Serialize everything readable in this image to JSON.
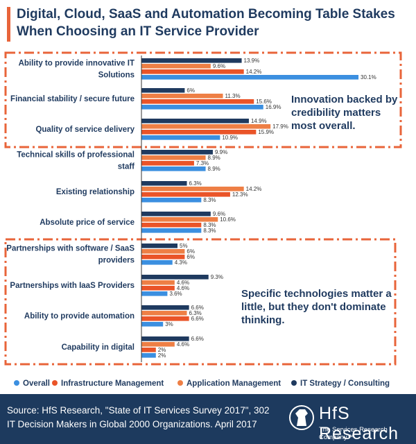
{
  "title": "Digital, Cloud, SaaS and Automation Becoming Table Stakes When Choosing an IT Service Provider",
  "callouts": {
    "innovation": [
      "Innovation backed by",
      "credibility matters",
      "most overall."
    ],
    "technologies": [
      "Specific technologies matter a",
      "little, but they don't dominate",
      "thinking."
    ]
  },
  "footer": {
    "source": "Source: HfS Research, \"State of IT Services Survey 2017\", 302 IT Decision Makers in Global 2000 Organizations. April 2017",
    "logo_name": "HfS Research",
    "logo_tag": "The Services Research Company™"
  },
  "colors": {
    "overall": "#3b8fe0",
    "infrastructure": "#ea5428",
    "application": "#ee7f45",
    "strategy": "#1f3a5f",
    "dash": "#e8643a"
  },
  "chart_data": {
    "type": "bar",
    "orientation": "horizontal",
    "value_suffix": "%",
    "categories": [
      [
        "Ability to provide innovative IT",
        "Solutions"
      ],
      [
        "Financial stability / secure future"
      ],
      [
        "Quality of service delivery"
      ],
      [
        "Technical skills of professional",
        "staff"
      ],
      [
        "Existing relationship"
      ],
      [
        "Absolute price of service"
      ],
      [
        "Partnerships with software / SaaS",
        "providers"
      ],
      [
        "Partnerships with IaaS Providers"
      ],
      [
        "Ability to provide automation"
      ],
      [
        "Capability in digital"
      ]
    ],
    "series": [
      {
        "name": "IT Strategy / Consulting",
        "color_key": "strategy",
        "values": [
          13.9,
          6,
          14.9,
          9.9,
          6.3,
          9.6,
          5,
          9.3,
          6.6,
          6.6
        ]
      },
      {
        "name": "Application Management",
        "color_key": "application",
        "values": [
          9.6,
          11.3,
          17.9,
          8.9,
          14.2,
          10.6,
          6,
          4.6,
          6.3,
          4.6
        ]
      },
      {
        "name": "Infrastructure Management",
        "color_key": "infrastructure",
        "values": [
          14.2,
          15.6,
          15.9,
          7.3,
          12.3,
          8.3,
          6,
          4.6,
          6.6,
          2
        ]
      },
      {
        "name": "Overall",
        "color_key": "overall",
        "values": [
          30.1,
          16.9,
          10.9,
          8.9,
          8.3,
          8.3,
          4.3,
          3.6,
          3,
          2
        ]
      }
    ],
    "legend": {
      "position": "bottom",
      "order": [
        "Overall",
        "Infrastructure Management",
        "Application Management",
        "IT Strategy / Consulting"
      ]
    },
    "grid": false
  }
}
